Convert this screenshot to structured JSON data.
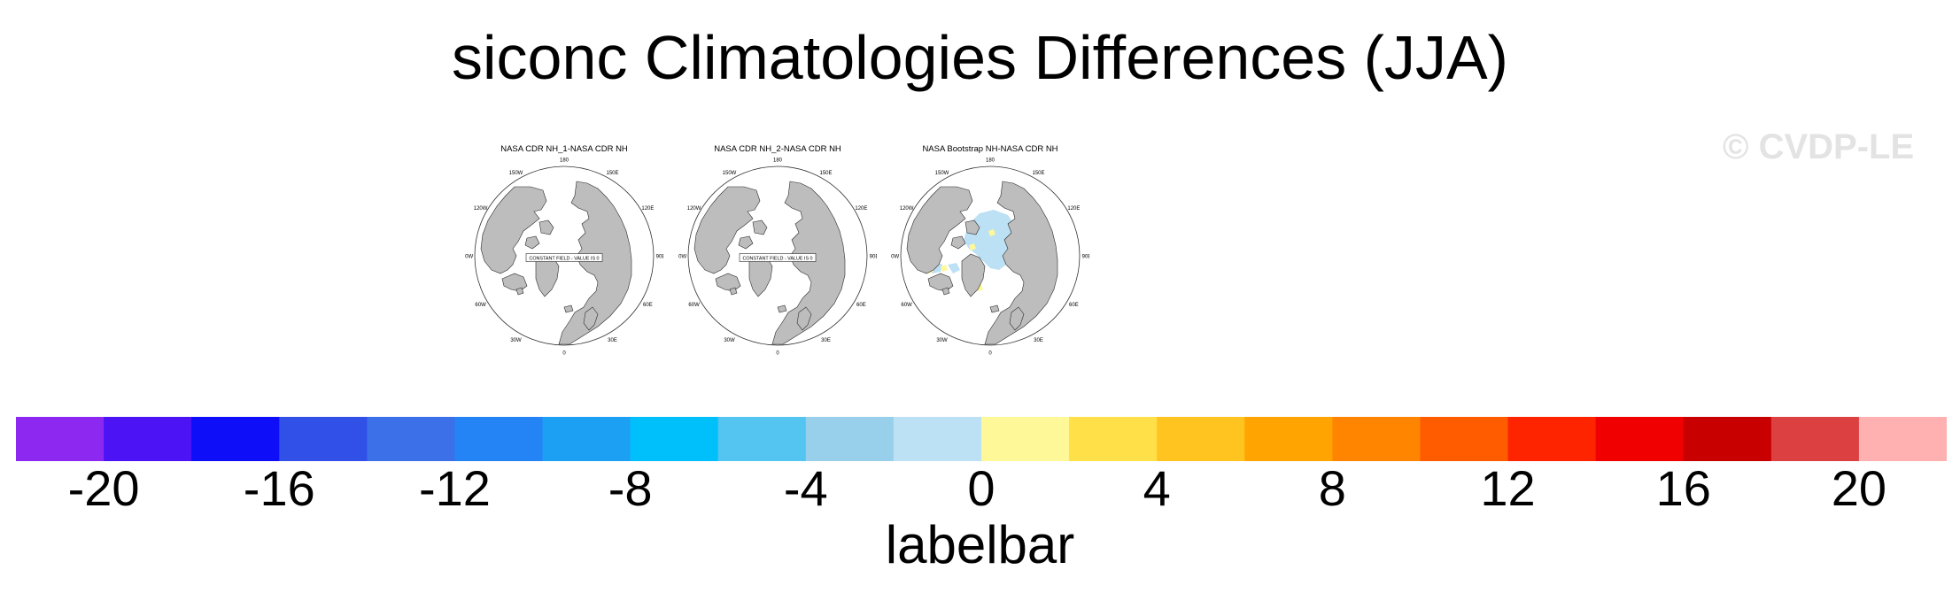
{
  "title": "siconc Climatologies Differences (JJA)",
  "watermark": "© CVDP-LE",
  "panels": [
    {
      "title": "NASA CDR NH_1-NASA CDR NH",
      "constant_field_note": "CONSTANT FIELD - VALUE IS 0",
      "has_field": false
    },
    {
      "title": "NASA CDR NH_2-NASA CDR NH",
      "constant_field_note": "CONSTANT FIELD - VALUE IS 0",
      "has_field": false
    },
    {
      "title": "NASA Bootstrap NH-NASA CDR NH",
      "constant_field_note": "",
      "has_field": true
    }
  ],
  "map_lon_labels": [
    "180",
    "150E",
    "120E",
    "90E",
    "60E",
    "30E",
    "0",
    "30W",
    "60W",
    "90W",
    "120W",
    "150W"
  ],
  "colors": {
    "land": "#bdbdbd",
    "coast": "#2a2a2a",
    "bins": [
      "#8c28f0",
      "#4c14f4",
      "#0e0ef8",
      "#3050e8",
      "#3c70e8",
      "#2484f6",
      "#1ca0f4",
      "#00c0fc",
      "#54c4f0",
      "#98d0ec",
      "#bce0f4",
      "#fff898",
      "#ffe048",
      "#ffc420",
      "#ffa400",
      "#ff8400",
      "#ff5c00",
      "#ff2400",
      "#f00000",
      "#c80000",
      "#dc4040",
      "#ffb0b0"
    ]
  },
  "chart_data": {
    "type": "heatmap",
    "projection": "north-polar-stereographic",
    "legend": {
      "type": "labelbar",
      "orientation": "horizontal",
      "placement": "bottom",
      "title": "labelbar",
      "min": -22,
      "max": 22,
      "bin_width": 2,
      "ticks": [
        -20,
        -16,
        -12,
        -8,
        -4,
        0,
        4,
        8,
        12,
        16,
        20
      ]
    },
    "panels": [
      {
        "name": "NASA CDR NH_1-NASA CDR NH",
        "constant_value": 0
      },
      {
        "name": "NASA CDR NH_2-NASA CDR NH",
        "constant_value": 0
      },
      {
        "name": "NASA Bootstrap NH-NASA CDR NH",
        "field_range": [
          -2,
          2
        ]
      }
    ]
  }
}
